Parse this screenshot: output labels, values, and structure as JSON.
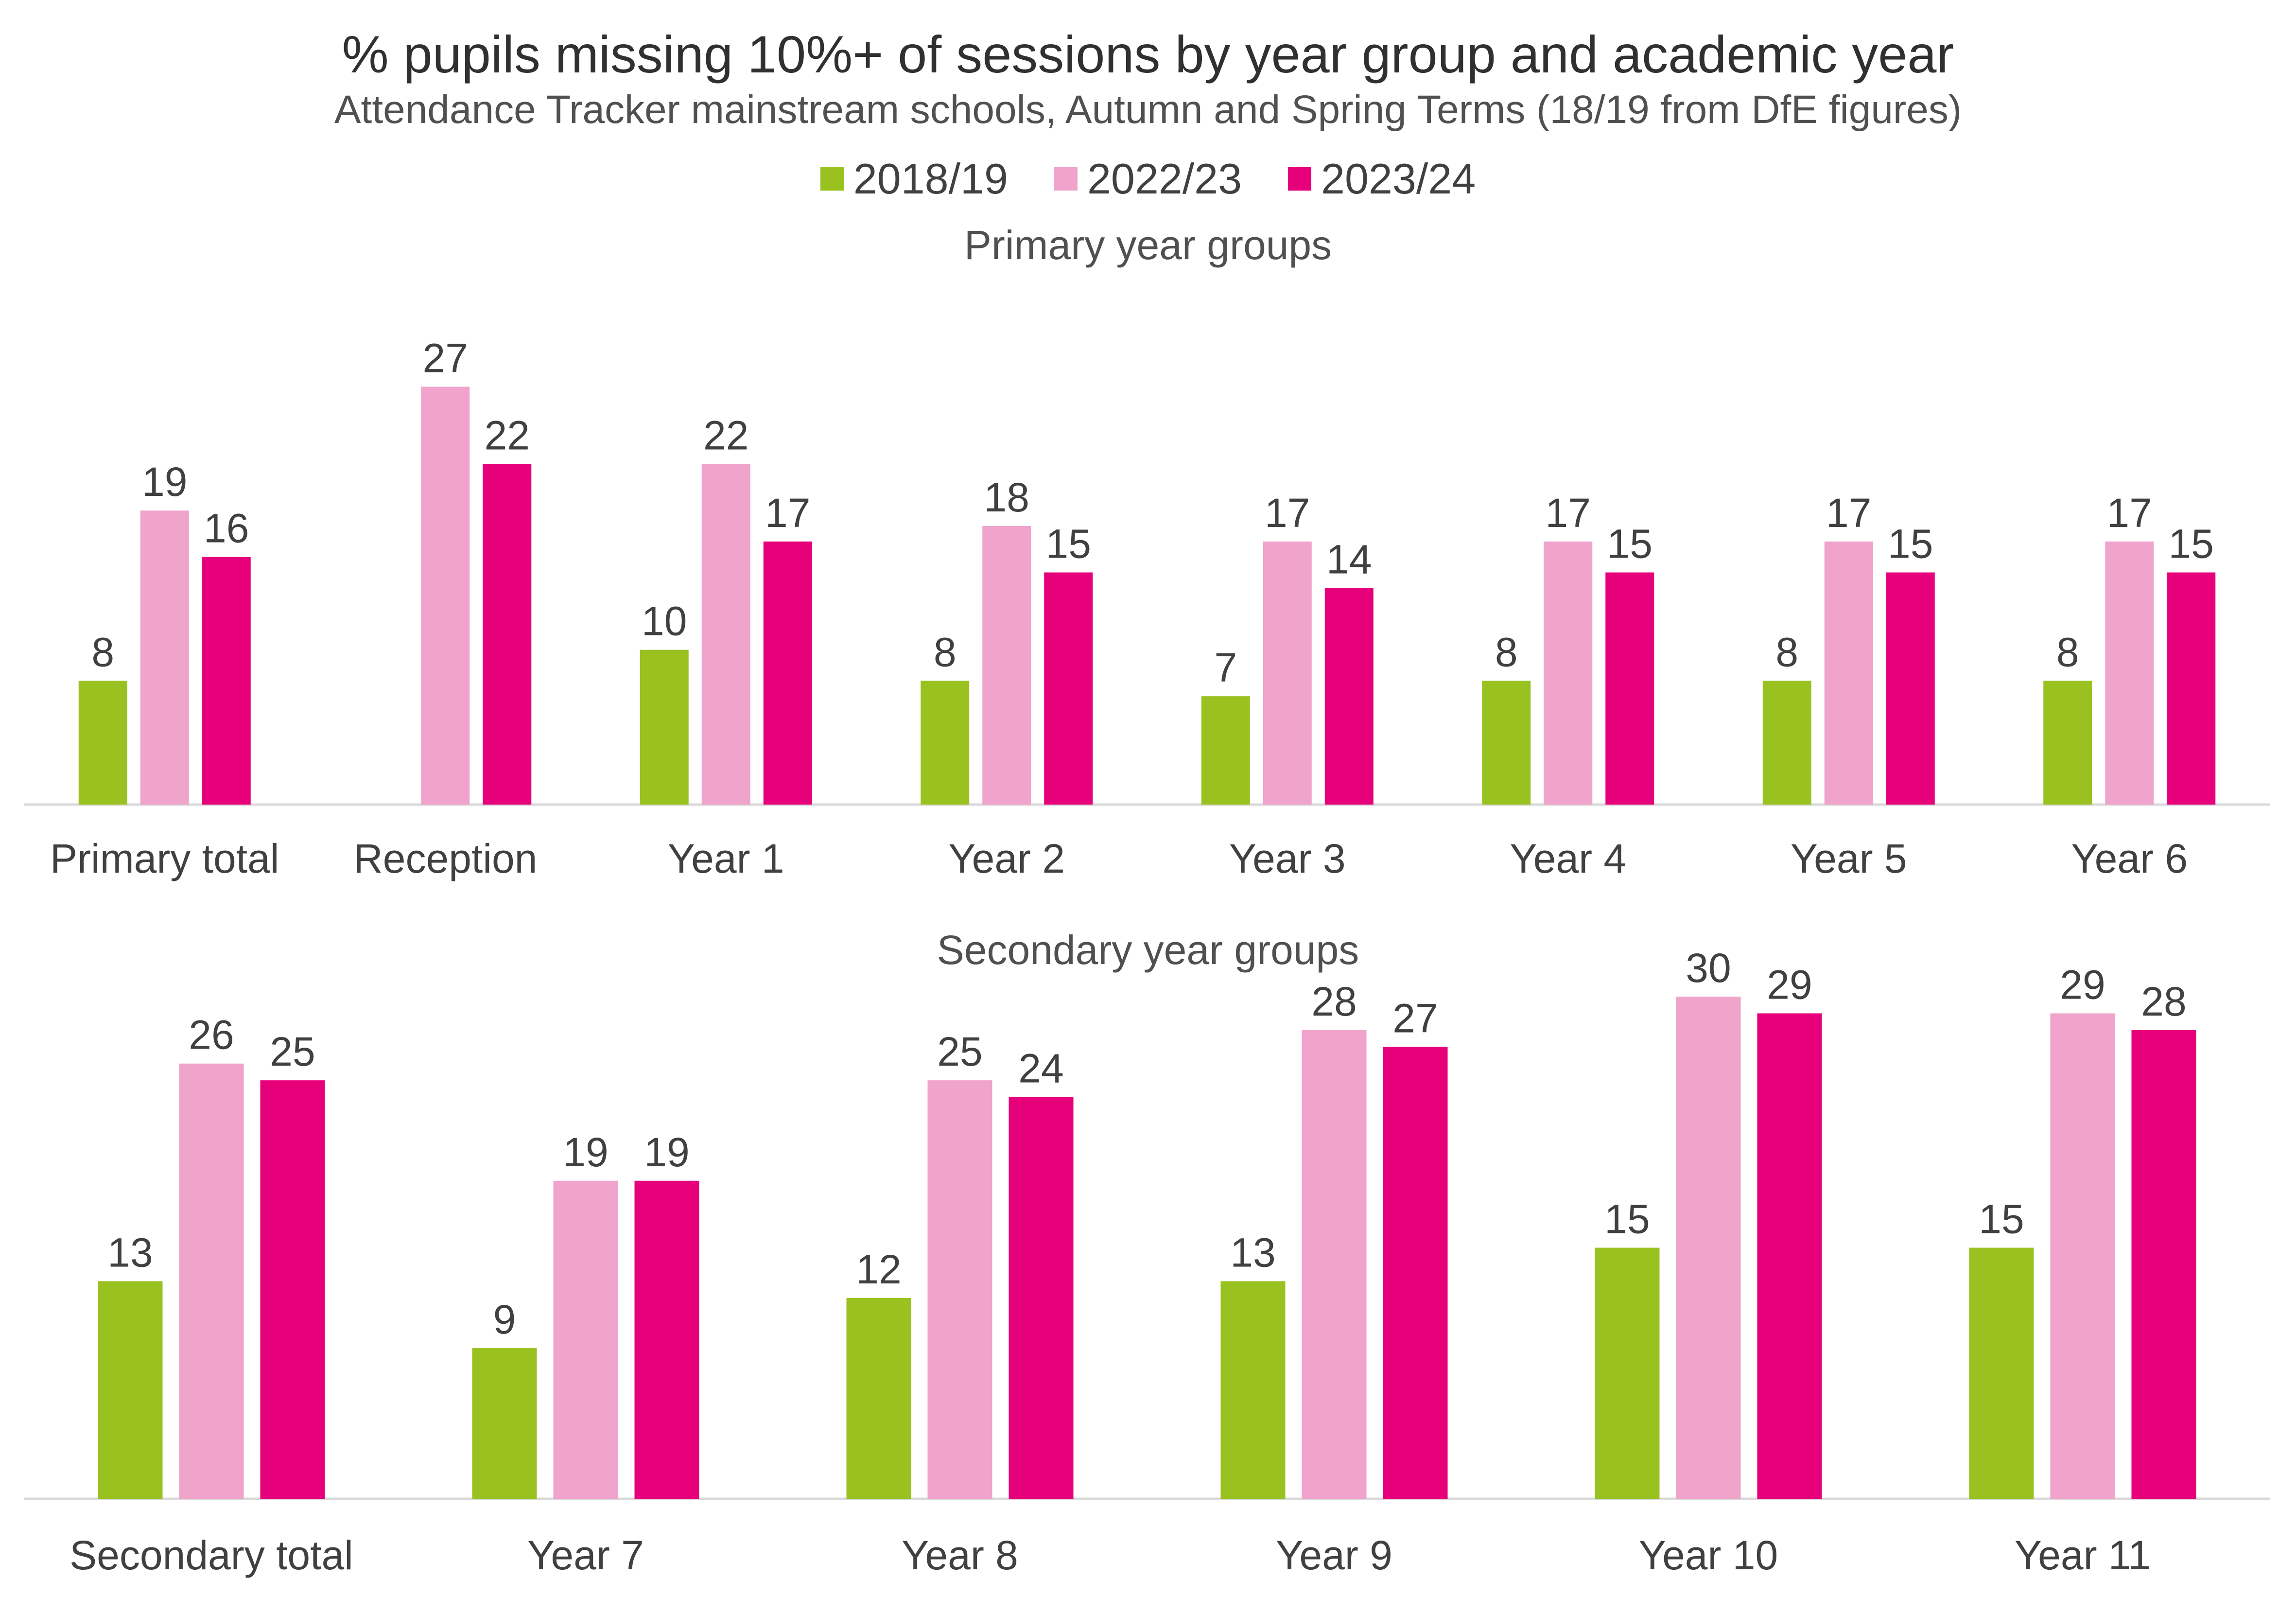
{
  "title": "% pupils missing 10%+ of sessions by year group and academic year",
  "subtitle": "Attendance Tracker mainstream schools, Autumn and Spring Terms (18/19 from DfE figures)",
  "legend": [
    {
      "label": "2018/19",
      "color": "#99C221"
    },
    {
      "label": "2022/23",
      "color": "#F0A3CB"
    },
    {
      "label": "2023/24",
      "color": "#E6007A"
    }
  ],
  "chart_data": [
    {
      "type": "bar",
      "title": "Primary year groups",
      "categories": [
        "Primary total",
        "Reception",
        "Year 1",
        "Year 2",
        "Year 3",
        "Year 4",
        "Year 5",
        "Year 6"
      ],
      "series": [
        {
          "name": "2018/19",
          "color": "#99C221",
          "values": [
            8,
            null,
            10,
            8,
            7,
            8,
            8,
            8
          ]
        },
        {
          "name": "2022/23",
          "color": "#F0A3CB",
          "values": [
            19,
            27,
            22,
            18,
            17,
            17,
            17,
            17
          ]
        },
        {
          "name": "2023/24",
          "color": "#E6007A",
          "values": [
            16,
            22,
            17,
            15,
            14,
            15,
            15,
            15
          ]
        }
      ],
      "ylim": [
        0,
        30
      ],
      "grid": false,
      "legend": "top-center"
    },
    {
      "type": "bar",
      "title": "Secondary year groups",
      "categories": [
        "Secondary total",
        "Year 7",
        "Year 8",
        "Year 9",
        "Year 10",
        "Year 11"
      ],
      "series": [
        {
          "name": "2018/19",
          "color": "#99C221",
          "values": [
            13,
            9,
            12,
            13,
            15,
            15
          ]
        },
        {
          "name": "2022/23",
          "color": "#F0A3CB",
          "values": [
            26,
            19,
            25,
            28,
            30,
            29
          ]
        },
        {
          "name": "2023/24",
          "color": "#E6007A",
          "values": [
            25,
            19,
            24,
            27,
            29,
            28
          ]
        }
      ],
      "ylim": [
        0,
        30
      ],
      "grid": false,
      "legend": "top-center"
    }
  ]
}
